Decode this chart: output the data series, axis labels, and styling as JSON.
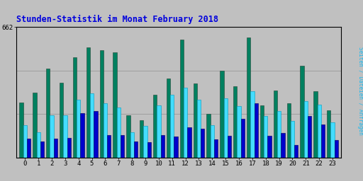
{
  "title": "Stunden-Statistik im Monat February 2018",
  "title_color": "#0000dd",
  "title_fontsize": 8.5,
  "xlabel_values": [
    0,
    1,
    2,
    3,
    4,
    5,
    6,
    7,
    8,
    9,
    10,
    11,
    12,
    13,
    14,
    15,
    16,
    17,
    18,
    19,
    20,
    21,
    22,
    23
  ],
  "ymax_label": "662",
  "ymax": 662,
  "background_color": "#c0c0c0",
  "plot_bg_color": "#c0c0c0",
  "border_color": "#000000",
  "color_seiten": "#008060",
  "color_dateien": "#44ddff",
  "color_anfragen": "#0000cc",
  "ylabel_text": "Seiten / Dateien / Anfragen",
  "ylabel_color": "#22bbee",
  "grid_color": "#999999",
  "seiten": [
    280,
    330,
    450,
    380,
    510,
    560,
    545,
    535,
    215,
    190,
    320,
    400,
    600,
    375,
    220,
    440,
    360,
    610,
    265,
    340,
    275,
    465,
    335,
    240
  ],
  "dateien": [
    165,
    130,
    215,
    215,
    295,
    325,
    275,
    255,
    130,
    160,
    265,
    320,
    355,
    295,
    165,
    300,
    260,
    335,
    210,
    235,
    185,
    285,
    270,
    178
  ],
  "anfragen": [
    95,
    82,
    95,
    100,
    225,
    235,
    115,
    115,
    82,
    78,
    115,
    105,
    155,
    145,
    92,
    112,
    195,
    275,
    110,
    125,
    65,
    210,
    168,
    88
  ]
}
